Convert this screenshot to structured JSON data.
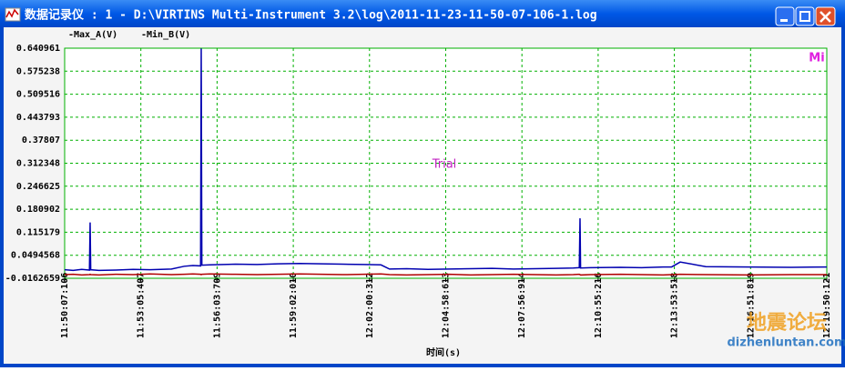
{
  "window": {
    "title": "数据记录仪 : 1 - D:\\VIRTINS Multi-Instrument 3.2\\log\\2011-11-23-11-50-07-106-1.log"
  },
  "chart_data": {
    "type": "line",
    "xlabel": "时间(s)",
    "annotations": [
      "Trial",
      "Mi"
    ],
    "watermark": [
      "地震论坛",
      "dizhenluntan.com"
    ],
    "x": [
      0,
      20,
      40,
      58,
      59.6,
      61,
      80,
      120,
      160,
      200,
      250,
      280,
      300,
      318,
      319.5,
      321,
      340,
      400,
      450,
      500,
      550,
      600,
      650,
      700,
      740,
      760,
      800,
      850,
      900,
      950,
      1000,
      1050,
      1100,
      1150,
      1190,
      1204,
      1205.7,
      1207,
      1230,
      1300,
      1350,
      1400,
      1420,
      1440,
      1500,
      1600,
      1700,
      1783.015
    ],
    "series": [
      {
        "name": "-Max_A(V)",
        "color": "#0000b0",
        "values": [
          0.008,
          0.006,
          0.009,
          0.007,
          0.143,
          0.008,
          0.006,
          0.007,
          0.009,
          0.008,
          0.01,
          0.018,
          0.02,
          0.019,
          0.64,
          0.021,
          0.022,
          0.024,
          0.023,
          0.025,
          0.026,
          0.025,
          0.024,
          0.023,
          0.022,
          0.01,
          0.011,
          0.009,
          0.01,
          0.011,
          0.012,
          0.01,
          0.011,
          0.012,
          0.013,
          0.014,
          0.155,
          0.013,
          0.014,
          0.015,
          0.014,
          0.016,
          0.016,
          0.03,
          0.017,
          0.016,
          0.015,
          0.016
        ]
      },
      {
        "name": "-Min_B(V)",
        "color": "#b00000",
        "values": [
          -0.006,
          -0.005,
          -0.007,
          -0.006,
          -0.005,
          -0.006,
          -0.007,
          -0.005,
          -0.006,
          -0.004,
          -0.006,
          -0.005,
          -0.004,
          -0.005,
          -0.006,
          -0.005,
          -0.004,
          -0.005,
          -0.006,
          -0.005,
          -0.004,
          -0.005,
          -0.006,
          -0.005,
          -0.004,
          -0.006,
          -0.007,
          -0.006,
          -0.005,
          -0.007,
          -0.006,
          -0.005,
          -0.006,
          -0.007,
          -0.006,
          -0.005,
          -0.006,
          -0.007,
          -0.006,
          -0.005,
          -0.006,
          -0.007,
          -0.006,
          -0.005,
          -0.006,
          -0.007,
          -0.006,
          -0.006
        ]
      }
    ],
    "ylim": [
      -0.0162659,
      0.640961
    ],
    "yticks": [
      -0.0162659,
      0.0494568,
      0.115179,
      0.180902,
      0.246625,
      0.312348,
      0.37807,
      0.443793,
      0.509516,
      0.575238,
      0.640961
    ],
    "xlim": [
      0,
      1783.015
    ],
    "xticks": [
      {
        "value": 0,
        "label": "11:50:07:106"
      },
      {
        "value": 178.301,
        "label": "11:53:05:407"
      },
      {
        "value": 356.603,
        "label": "11:56:03:709"
      },
      {
        "value": 534.904,
        "label": "11:59:02:010"
      },
      {
        "value": 713.206,
        "label": "12:02:00:312"
      },
      {
        "value": 891.507,
        "label": "12:04:58:613"
      },
      {
        "value": 1069.808,
        "label": "12:07:56:914"
      },
      {
        "value": 1248.11,
        "label": "12:10:55:216"
      },
      {
        "value": 1426.412,
        "label": "12:13:53:518"
      },
      {
        "value": 1604.713,
        "label": "12:16:51:819"
      },
      {
        "value": 1783.015,
        "label": "12:19:50:121"
      }
    ],
    "grid": true,
    "grid_color": "#00b000"
  }
}
